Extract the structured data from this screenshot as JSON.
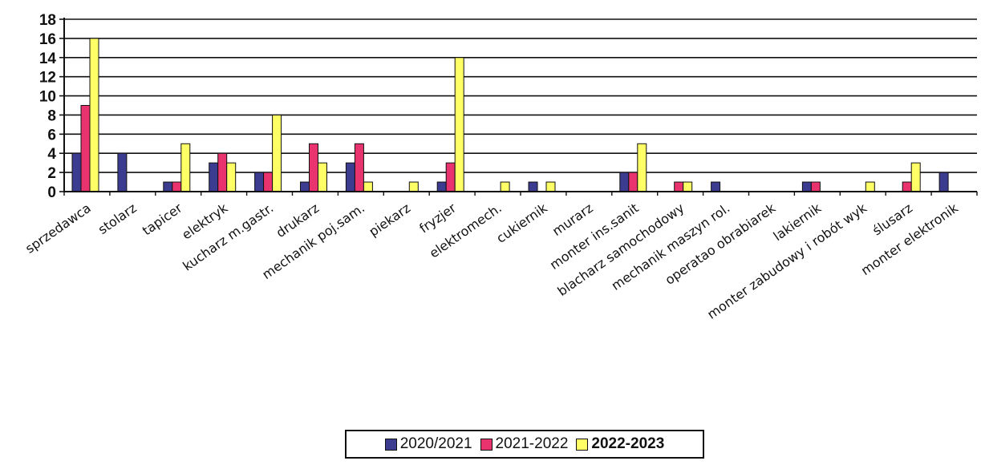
{
  "chart_data": {
    "type": "bar",
    "categories": [
      "sprzedawca",
      "stolarz",
      "tapicer",
      "elektryk",
      "kucharz m.gastr.",
      "drukarz",
      "mechanik poj.sam.",
      "piekarz",
      "fryzjer",
      "elektromech.",
      "cukiernik",
      "murarz",
      "monter ins.sanit",
      "blacharz samochodowy",
      "mechanik maszyn rol.",
      "operatao obrabiarek",
      "lakiernik",
      "monter zabudowy i robót wyk",
      "ślusarz",
      "monter elektronik"
    ],
    "series": [
      {
        "name": "2020/2021",
        "color": "#3b3b8f",
        "values": [
          4,
          4,
          1,
          3,
          2,
          1,
          3,
          0,
          1,
          0,
          1,
          0,
          2,
          0,
          1,
          0,
          1,
          0,
          0,
          2
        ]
      },
      {
        "name": "2021-2022",
        "color": "#e8336e",
        "values": [
          9,
          0,
          1,
          4,
          2,
          5,
          5,
          0,
          3,
          0,
          0,
          0,
          2,
          1,
          0,
          0,
          1,
          0,
          1,
          0
        ]
      },
      {
        "name": "2022-2023",
        "color": "#ffff66",
        "values": [
          16,
          0,
          5,
          3,
          8,
          3,
          1,
          1,
          14,
          1,
          1,
          0,
          5,
          1,
          0,
          0,
          0,
          1,
          3,
          0
        ]
      }
    ],
    "yticks": [
      0,
      2,
      4,
      6,
      8,
      10,
      12,
      14,
      16,
      18
    ],
    "ylim": [
      0,
      18
    ],
    "grid": true,
    "legend_position": "bottom"
  }
}
